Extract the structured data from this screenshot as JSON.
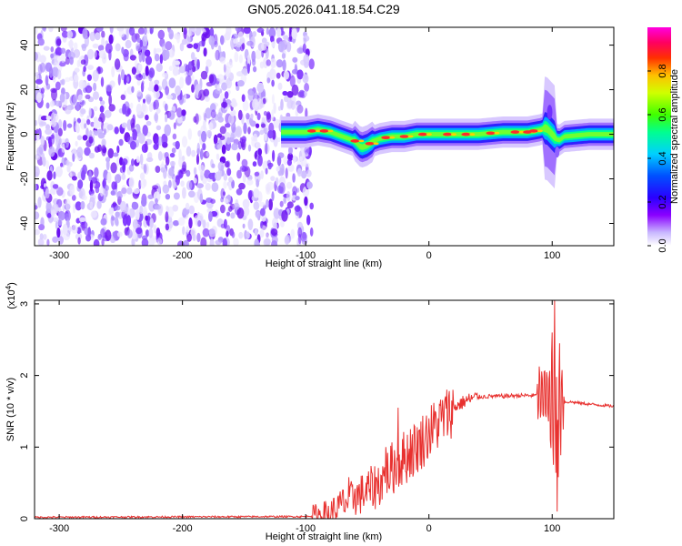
{
  "figure": {
    "title": "GN05.2026.041.18.54.C29"
  },
  "chart_data": [
    {
      "type": "heatmap",
      "title": "GN05.2026.041.18.54.C29",
      "xlabel": "Height of straight line (km)",
      "ylabel": "Frequency (Hz)",
      "xlim": [
        -320,
        150
      ],
      "ylim": [
        -50,
        48
      ],
      "xticks": [
        -300,
        -200,
        -100,
        0,
        100
      ],
      "yticks": [
        -40,
        -20,
        0,
        20,
        40
      ],
      "noise_region_x": [
        -320,
        -95
      ],
      "signal_band": {
        "x": [
          -120,
          -100,
          -90,
          -80,
          -70,
          -60,
          -55,
          -50,
          -45,
          -40,
          -30,
          -20,
          -10,
          0,
          20,
          40,
          60,
          80,
          90,
          95,
          100,
          105,
          110,
          130,
          150
        ],
        "center_freq": [
          1,
          1,
          2,
          1,
          -1,
          -3,
          -6,
          -5,
          -3,
          -2,
          -1,
          -1,
          0,
          0,
          0,
          0,
          1,
          1,
          2,
          3,
          0,
          -3,
          -1,
          0,
          0
        ]
      },
      "colorbar": {
        "label": "Normalized spectral amplitude",
        "range": [
          0,
          1
        ],
        "ticks": [
          "0.0",
          "0.2",
          "0.4",
          "0.6",
          "0.8"
        ],
        "colormap": [
          "#ffffff",
          "#b9a7ff",
          "#6b00ff",
          "#0000ff",
          "#00c8ff",
          "#00ff88",
          "#66ff00",
          "#ffff00",
          "#ff8800",
          "#ff0000",
          "#ff00c8"
        ]
      }
    },
    {
      "type": "line",
      "xlabel": "Height of straight line (km)",
      "ylabel": "SNR (10 * v/v)",
      "scale_label": "(x10",
      "scale_exponent": "4",
      "scale_suffix": ")",
      "xlim": [
        -320,
        150
      ],
      "ylim": [
        0,
        3.05
      ],
      "xticks": [
        -300,
        -200,
        -100,
        0,
        100
      ],
      "yticks": [
        0,
        1,
        2,
        3
      ],
      "color": "#e8312f",
      "envelope": {
        "x": [
          -320,
          -100,
          -80,
          -70,
          -60,
          -50,
          -40,
          -30,
          -20,
          -10,
          0,
          10,
          20,
          30,
          40,
          50,
          60,
          70,
          80,
          85,
          90,
          95,
          100,
          103,
          105,
          108,
          110,
          115,
          130,
          150
        ],
        "y": [
          0.02,
          0.03,
          0.08,
          0.2,
          0.3,
          0.38,
          0.5,
          0.7,
          0.85,
          1.0,
          1.2,
          1.38,
          1.55,
          1.65,
          1.7,
          1.71,
          1.71,
          1.72,
          1.72,
          1.72,
          1.72,
          1.72,
          1.7,
          1.65,
          1.68,
          1.65,
          1.63,
          1.63,
          1.6,
          1.57
        ]
      },
      "spikes": [
        {
          "x": -70,
          "y": 0.4
        },
        {
          "x": -65,
          "y": 0.58
        },
        {
          "x": -60,
          "y": 0.42
        },
        {
          "x": -35,
          "y": 1.0
        },
        {
          "x": -25,
          "y": 1.55
        },
        {
          "x": -15,
          "y": 1.25
        },
        {
          "x": 100,
          "y": 2.6
        },
        {
          "x": 102,
          "y": 3.05
        },
        {
          "x": 104,
          "y": 0.1
        },
        {
          "x": 106,
          "y": 2.45
        }
      ]
    }
  ]
}
